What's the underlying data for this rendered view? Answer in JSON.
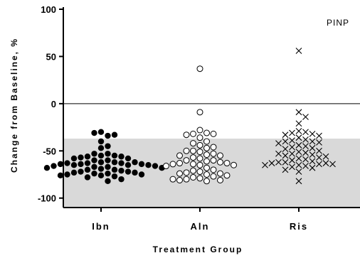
{
  "chart_data": {
    "type": "scatter",
    "subtype": "dot-plot",
    "annotation": "PINP",
    "xlabel": "Treatment Group",
    "ylabel": "Change from Baseline, %",
    "ylim": [
      -110,
      100
    ],
    "yticks": [
      {
        "value": 100,
        "label": "100"
      },
      {
        "value": 50,
        "label": "50"
      },
      {
        "value": 0,
        "label": "0"
      },
      {
        "value": -50,
        "label": "-50"
      },
      {
        "value": -100,
        "label": "-100"
      }
    ],
    "categories": [
      "Ibn",
      "Aln",
      "Ris"
    ],
    "reference_line": 0,
    "shaded_band": {
      "from": -110,
      "to": -37,
      "color": "#d9d9d9"
    },
    "grid": false,
    "series": [
      {
        "category": "Ibn",
        "marker": "filled-circle",
        "values": [
          -30,
          -34,
          -31,
          -33,
          -40,
          -45,
          -47,
          -53,
          -53,
          -55,
          -55,
          -56,
          -56,
          -57,
          -58,
          -58,
          -60,
          -60,
          -62,
          -62,
          -62,
          -63,
          -63,
          -63,
          -64,
          -64,
          -64,
          -65,
          -65,
          -65,
          -66,
          -66,
          -67,
          -67,
          -68,
          -68,
          -69,
          -70,
          -70,
          -71,
          -72,
          -72,
          -73,
          -73,
          -74,
          -74,
          -75,
          -75,
          -76,
          -76,
          -77,
          -78,
          -80,
          -82
        ]
      },
      {
        "category": "Aln",
        "marker": "open-circle",
        "values": [
          37,
          -9,
          -28,
          -31,
          -32,
          -32,
          -33,
          -36,
          -40,
          -42,
          -44,
          -46,
          -47,
          -50,
          -50,
          -51,
          -53,
          -54,
          -55,
          -55,
          -57,
          -58,
          -60,
          -60,
          -61,
          -62,
          -63,
          -63,
          -64,
          -64,
          -65,
          -65,
          -66,
          -68,
          -70,
          -71,
          -72,
          -73,
          -74,
          -74,
          -75,
          -76,
          -77,
          -78,
          -79,
          -80,
          -80,
          -81,
          -81,
          -82
        ]
      },
      {
        "category": "Ris",
        "marker": "x",
        "values": [
          56,
          -9,
          -14,
          -21,
          -29,
          -30,
          -31,
          -32,
          -33,
          -34,
          -36,
          -38,
          -39,
          -40,
          -40,
          -41,
          -42,
          -44,
          -45,
          -46,
          -47,
          -48,
          -50,
          -51,
          -52,
          -53,
          -53,
          -54,
          -55,
          -56,
          -57,
          -58,
          -59,
          -60,
          -61,
          -62,
          -62,
          -63,
          -63,
          -64,
          -64,
          -65,
          -65,
          -66,
          -67,
          -68,
          -70,
          -72,
          -82
        ]
      }
    ]
  }
}
